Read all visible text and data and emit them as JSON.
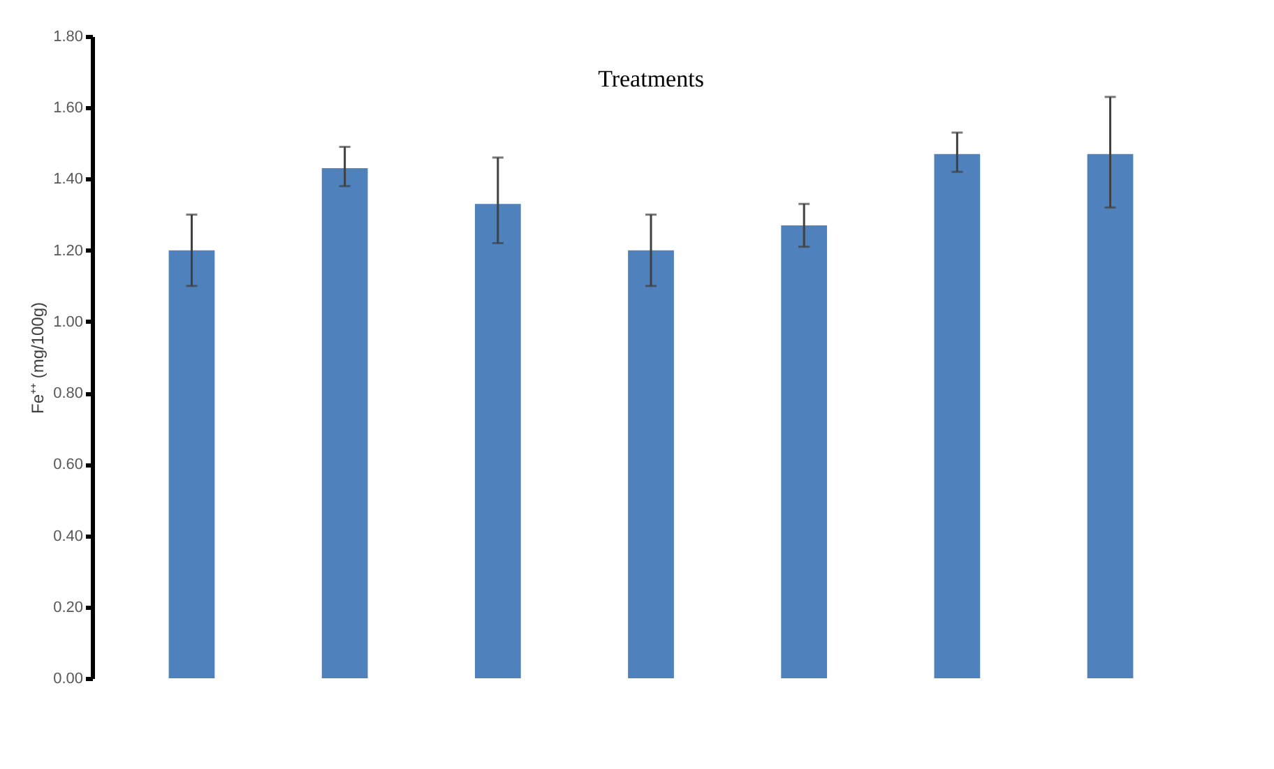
{
  "chart_data": {
    "type": "bar",
    "title": "Treatments",
    "ylabel": "Fe⁺⁺ (mg/100g)",
    "categories": [
      null,
      null,
      null,
      null,
      null,
      null,
      null
    ],
    "values": [
      1.2,
      1.43,
      1.33,
      1.2,
      1.27,
      1.47,
      1.47
    ],
    "errors": [
      [
        1.1,
        1.3
      ],
      [
        1.38,
        1.49
      ],
      [
        1.22,
        1.46
      ],
      [
        1.1,
        1.3
      ],
      [
        1.21,
        1.33
      ],
      [
        1.42,
        1.53
      ],
      [
        1.32,
        1.63
      ]
    ],
    "color": "#4f81bd",
    "ylim": [
      0,
      1.8
    ],
    "yticks": [
      {
        "value": 0,
        "label": "0.00"
      },
      {
        "value": 0.2,
        "label": "0.20"
      },
      {
        "value": 0.4,
        "label": "0.40"
      },
      {
        "value": 0.6,
        "label": "0.60"
      },
      {
        "value": 0.8,
        "label": "0.80"
      },
      {
        "value": 1.0,
        "label": "1.00"
      },
      {
        "value": 1.2,
        "label": "1.20"
      },
      {
        "value": 1.4,
        "label": "1.40"
      },
      {
        "value": 1.6,
        "label": "1.60"
      },
      {
        "value": 1.8,
        "label": "1.80"
      }
    ],
    "grid": false,
    "tick_labels": "y"
  }
}
